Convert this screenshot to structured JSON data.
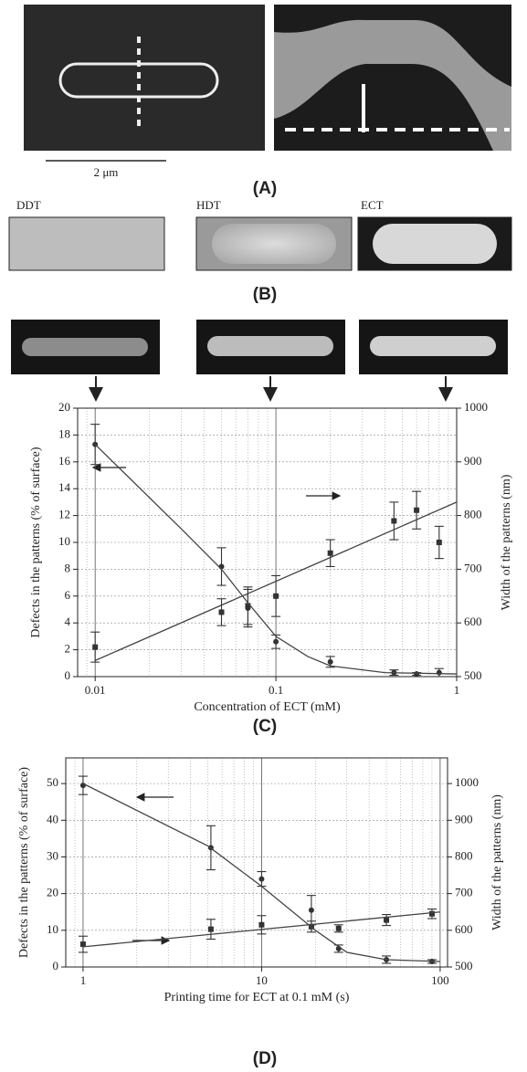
{
  "figure": {
    "panel_labels": [
      "(A)",
      "(B)",
      "(C)",
      "(D)"
    ],
    "scale_bar": "2 μm",
    "monolayers": [
      "DDT",
      "HDT",
      "ECT"
    ]
  },
  "chart_data": [
    {
      "type": "scatter",
      "log_x": true,
      "grid": true,
      "xlabel": "Concentration of ECT  (mM)",
      "ylabel": "Defects in the patterns  (% of surface)",
      "y2label": "Width of the patterns  (nm)",
      "xlim": [
        0.008,
        1
      ],
      "xticks": [
        0.01,
        0.1,
        1
      ],
      "ylim": [
        0,
        20
      ],
      "yticks": [
        0,
        2,
        4,
        6,
        8,
        10,
        12,
        14,
        16,
        18,
        20
      ],
      "y2lim": [
        500,
        1000
      ],
      "y2ticks": [
        500,
        600,
        700,
        800,
        900,
        1000
      ],
      "series": [
        {
          "marker": "circle",
          "color": "#333333",
          "x": [
            0.01,
            0.05,
            0.07,
            0.1,
            0.2,
            0.45,
            0.6,
            0.8
          ],
          "values": [
            17.3,
            8.2,
            5.1,
            2.6,
            1.1,
            0.3,
            0.2,
            0.3
          ],
          "errors": [
            1.5,
            1.4,
            1.4,
            0.5,
            0.4,
            0.2,
            0.1,
            0.3
          ]
        },
        {
          "marker": "square",
          "color": "#333333",
          "axis": "y2",
          "x": [
            0.01,
            0.05,
            0.07,
            0.1,
            0.2,
            0.45,
            0.6,
            0.8
          ],
          "values": [
            555,
            620,
            632,
            650,
            730,
            790,
            810,
            750
          ],
          "errors": [
            28,
            25,
            35,
            38,
            25,
            35,
            35,
            30
          ]
        },
        {
          "marker": "line",
          "color": "#444444",
          "x": [
            0.01,
            0.03,
            0.05,
            0.07,
            0.1,
            0.15,
            0.2,
            0.4,
            1
          ],
          "values": [
            17.3,
            11,
            8,
            5.5,
            3,
            1.5,
            0.8,
            0.3,
            0.2
          ]
        },
        {
          "marker": "line",
          "color": "#444444",
          "axis": "y2",
          "x": [
            0.01,
            1
          ],
          "values": [
            530,
            825
          ]
        }
      ]
    },
    {
      "type": "scatter",
      "log_x": true,
      "grid": true,
      "xlabel": "Printing time for ECT at 0.1 mM  (s)",
      "ylabel": "Defects in the patterns  (% of surface)",
      "y2label": "Width of the patterns  (nm)",
      "xlim": [
        0.8,
        110
      ],
      "xticks": [
        1,
        10,
        100
      ],
      "ylim": [
        0,
        57
      ],
      "yticks": [
        0,
        10,
        20,
        30,
        40,
        50
      ],
      "y2lim": [
        500,
        1070
      ],
      "y2ticks": [
        500,
        600,
        700,
        800,
        900,
        1000
      ],
      "series": [
        {
          "marker": "circle",
          "color": "#333333",
          "x": [
            1,
            5.2,
            10,
            19,
            27,
            50,
            90
          ],
          "values": [
            49.5,
            32.5,
            24,
            15.5,
            5,
            2,
            1.5
          ],
          "errors": [
            2.5,
            6,
            2,
            4,
            1,
            1,
            0.5
          ]
        },
        {
          "marker": "square",
          "color": "#333333",
          "axis": "y2",
          "x": [
            1,
            5.2,
            10,
            19,
            27,
            50,
            90
          ],
          "values": [
            562,
            603,
            615,
            610,
            605,
            628,
            645
          ],
          "errors": [
            22,
            27,
            25,
            15,
            10,
            15,
            13
          ]
        },
        {
          "marker": "line",
          "color": "#444444",
          "x": [
            1,
            5,
            10,
            20,
            30,
            50,
            100
          ],
          "values": [
            50,
            33,
            22,
            10,
            4,
            2,
            1.5
          ]
        },
        {
          "marker": "line",
          "color": "#444444",
          "axis": "y2",
          "x": [
            1,
            100
          ],
          "values": [
            555,
            650
          ]
        }
      ]
    }
  ]
}
